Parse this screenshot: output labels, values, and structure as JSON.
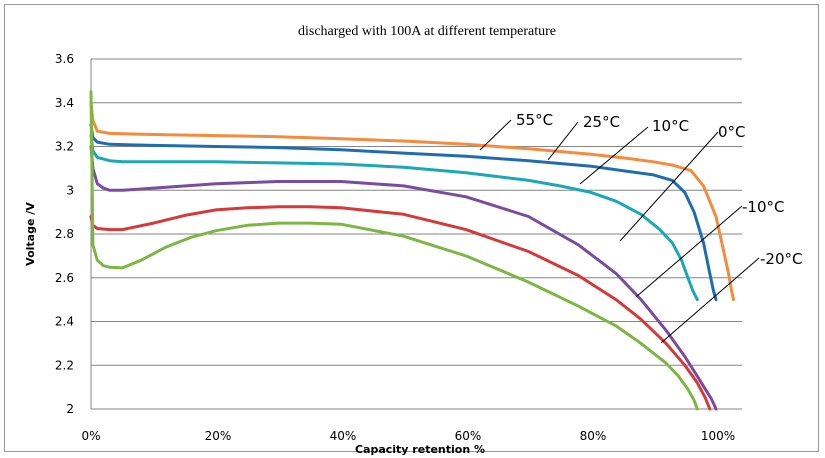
{
  "chart_data": {
    "type": "line",
    "title": "discharged with 100A at different temperature",
    "xlabel": "Capacity retention %",
    "ylabel": "Voltage /V",
    "xlim": [
      0,
      100
    ],
    "ylim": [
      2,
      3.6
    ],
    "x_ticks": [
      0,
      20,
      40,
      60,
      80,
      100
    ],
    "x_tick_labels": [
      "0%",
      "20%",
      "40%",
      "60%",
      "80%",
      "100%"
    ],
    "y_ticks": [
      2,
      2.2,
      2.4,
      2.6,
      2.8,
      3,
      3.2,
      3.4,
      3.6
    ],
    "y_tick_labels": [
      "2",
      "2.2",
      "2.4",
      "2.6",
      "2.8",
      "3",
      "3.2",
      "3.4",
      "3.6"
    ],
    "grid": "horizontal",
    "legend": "inline callout labels",
    "series": [
      {
        "name": "55°C",
        "color": "#f58b3c",
        "x": [
          0,
          0.3,
          1,
          3,
          10,
          20,
          30,
          40,
          50,
          60,
          70,
          80,
          86,
          90,
          93,
          96,
          98,
          100,
          101,
          102,
          102.5,
          102.8
        ],
        "y": [
          3.4,
          3.32,
          3.27,
          3.26,
          3.255,
          3.25,
          3.245,
          3.235,
          3.225,
          3.21,
          3.19,
          3.165,
          3.145,
          3.13,
          3.115,
          3.09,
          3.02,
          2.88,
          2.75,
          2.62,
          2.54,
          2.5
        ]
      },
      {
        "name": "25°C",
        "color": "#1f6db0",
        "x": [
          0,
          0.3,
          1,
          3,
          10,
          20,
          30,
          40,
          50,
          60,
          70,
          80,
          85,
          90,
          93,
          95,
          96.5,
          98,
          99,
          99.6,
          100
        ],
        "y": [
          3.3,
          3.24,
          3.22,
          3.21,
          3.205,
          3.2,
          3.195,
          3.185,
          3.17,
          3.155,
          3.135,
          3.11,
          3.09,
          3.07,
          3.045,
          2.99,
          2.9,
          2.76,
          2.62,
          2.54,
          2.5
        ]
      },
      {
        "name": "10°C",
        "color": "#1aa8b8",
        "x": [
          0,
          0.3,
          1,
          3,
          5,
          10,
          20,
          30,
          40,
          50,
          60,
          70,
          75,
          80,
          84,
          88,
          91,
          93,
          94.5,
          95.5,
          96.3,
          97
        ],
        "y": [
          3.25,
          3.18,
          3.15,
          3.135,
          3.13,
          3.13,
          3.13,
          3.125,
          3.12,
          3.105,
          3.08,
          3.045,
          3.02,
          2.99,
          2.95,
          2.89,
          2.82,
          2.76,
          2.68,
          2.6,
          2.54,
          2.5
        ]
      },
      {
        "name": "0°C",
        "color": "#7a4b9e",
        "x": [
          0,
          0.3,
          1,
          2,
          3,
          5,
          10,
          20,
          30,
          40,
          50,
          60,
          70,
          78,
          84,
          88,
          92,
          95,
          97,
          98.3,
          99.2,
          99.7,
          100
        ],
        "y": [
          3.2,
          3.1,
          3.03,
          3.01,
          3.0,
          3.0,
          3.01,
          3.03,
          3.04,
          3.04,
          3.02,
          2.97,
          2.88,
          2.75,
          2.62,
          2.5,
          2.36,
          2.24,
          2.15,
          2.09,
          2.05,
          2.02,
          2.0
        ]
      },
      {
        "name": "-10°C",
        "color": "#d43a3a",
        "x": [
          0,
          0.3,
          1,
          3,
          5,
          10,
          15,
          20,
          25,
          30,
          35,
          40,
          50,
          60,
          70,
          78,
          84,
          88,
          92,
          95,
          97,
          98.3,
          99
        ],
        "y": [
          2.88,
          2.84,
          2.825,
          2.82,
          2.82,
          2.85,
          2.885,
          2.91,
          2.92,
          2.925,
          2.925,
          2.92,
          2.89,
          2.82,
          2.72,
          2.61,
          2.5,
          2.41,
          2.3,
          2.2,
          2.12,
          2.05,
          2.0
        ]
      },
      {
        "name": "-20°C",
        "color": "#7db642",
        "x": [
          0,
          0.3,
          1,
          2,
          3,
          5,
          8,
          12,
          16,
          20,
          25,
          30,
          35,
          40,
          50,
          60,
          70,
          78,
          84,
          88,
          92,
          94,
          95.5,
          96.5,
          97
        ],
        "y": [
          3.45,
          2.75,
          2.68,
          2.655,
          2.648,
          2.645,
          2.68,
          2.74,
          2.785,
          2.815,
          2.84,
          2.85,
          2.85,
          2.845,
          2.79,
          2.7,
          2.58,
          2.47,
          2.38,
          2.3,
          2.21,
          2.15,
          2.09,
          2.04,
          2.0
        ]
      }
    ]
  }
}
